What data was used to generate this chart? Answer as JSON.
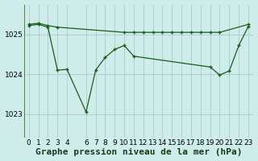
{
  "background_color": "#ceecea",
  "line_color": "#1a5c1a",
  "grid_color": "#a8ccc8",
  "xlabel": "Graphe pression niveau de la mer (hPa)",
  "xlabel_fontsize": 8,
  "tick_fontsize": 6.5,
  "xlim": [
    -0.5,
    23.5
  ],
  "ylim": [
    1022.4,
    1025.75
  ],
  "yticks": [
    1023,
    1024,
    1025
  ],
  "xticks": [
    0,
    1,
    2,
    3,
    4,
    6,
    7,
    8,
    9,
    10,
    11,
    12,
    13,
    14,
    15,
    16,
    17,
    18,
    19,
    20,
    21,
    22,
    23
  ],
  "series1_x": [
    0,
    1,
    2,
    3,
    10,
    11,
    12,
    13,
    14,
    15,
    16,
    17,
    18,
    19,
    20,
    23
  ],
  "series1_y": [
    1025.25,
    1025.28,
    1025.22,
    1025.18,
    1025.05,
    1025.05,
    1025.05,
    1025.05,
    1025.05,
    1025.05,
    1025.05,
    1025.05,
    1025.05,
    1025.05,
    1025.05,
    1025.25
  ],
  "series2_x": [
    0,
    1,
    2,
    3,
    4,
    6,
    7,
    8,
    9,
    10,
    11,
    19,
    20,
    21,
    22,
    23
  ],
  "series2_y": [
    1025.22,
    1025.25,
    1025.18,
    1024.1,
    1024.12,
    1023.05,
    1024.1,
    1024.42,
    1024.62,
    1024.72,
    1024.45,
    1024.18,
    1023.98,
    1024.08,
    1024.72,
    1025.2
  ]
}
